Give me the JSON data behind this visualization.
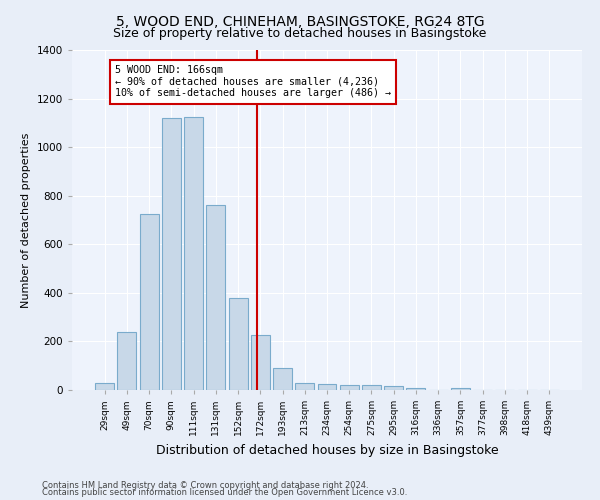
{
  "title": "5, WOOD END, CHINEHAM, BASINGSTOKE, RG24 8TG",
  "subtitle": "Size of property relative to detached houses in Basingstoke",
  "xlabel": "Distribution of detached houses by size in Basingstoke",
  "ylabel": "Number of detached properties",
  "footnote1": "Contains HM Land Registry data © Crown copyright and database right 2024.",
  "footnote2": "Contains public sector information licensed under the Open Government Licence v3.0.",
  "bar_labels": [
    "29sqm",
    "49sqm",
    "70sqm",
    "90sqm",
    "111sqm",
    "131sqm",
    "152sqm",
    "172sqm",
    "193sqm",
    "213sqm",
    "234sqm",
    "254sqm",
    "275sqm",
    "295sqm",
    "316sqm",
    "336sqm",
    "357sqm",
    "377sqm",
    "398sqm",
    "418sqm",
    "439sqm"
  ],
  "bar_values": [
    30,
    240,
    725,
    1120,
    1125,
    760,
    380,
    225,
    90,
    30,
    25,
    20,
    20,
    15,
    8,
    0,
    10,
    0,
    0,
    0,
    0
  ],
  "bar_color": "#c8d8e8",
  "bar_edge_color": "#7aabcc",
  "vertical_line_x": 6.85,
  "vertical_line_color": "#cc0000",
  "annotation_box_text": "5 WOOD END: 166sqm\n← 90% of detached houses are smaller (4,236)\n10% of semi-detached houses are larger (486) →",
  "ylim": [
    0,
    1400
  ],
  "yticks": [
    0,
    200,
    400,
    600,
    800,
    1000,
    1200,
    1400
  ],
  "bg_color": "#e8eef8",
  "plot_bg_color": "#eef3fc",
  "title_fontsize": 10,
  "subtitle_fontsize": 9,
  "xlabel_fontsize": 9,
  "ylabel_fontsize": 8
}
